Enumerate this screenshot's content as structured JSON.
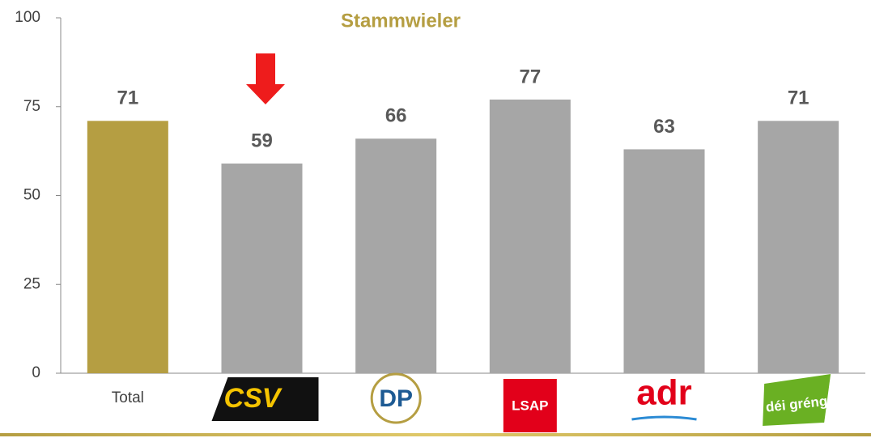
{
  "chart_data": {
    "type": "bar",
    "title": "Stammwieler",
    "categories": [
      "Total",
      "CSV",
      "DP",
      "LSAP",
      "adr",
      "déi gréng"
    ],
    "values": [
      71,
      59,
      66,
      77,
      63,
      71
    ],
    "colors": [
      "#b59e42",
      "#a6a6a6",
      "#a6a6a6",
      "#a6a6a6",
      "#a6a6a6",
      "#a6a6a6"
    ],
    "ylim": [
      0,
      100
    ],
    "yticks": [
      0,
      25,
      50,
      75,
      100
    ],
    "grid": false
  }
}
